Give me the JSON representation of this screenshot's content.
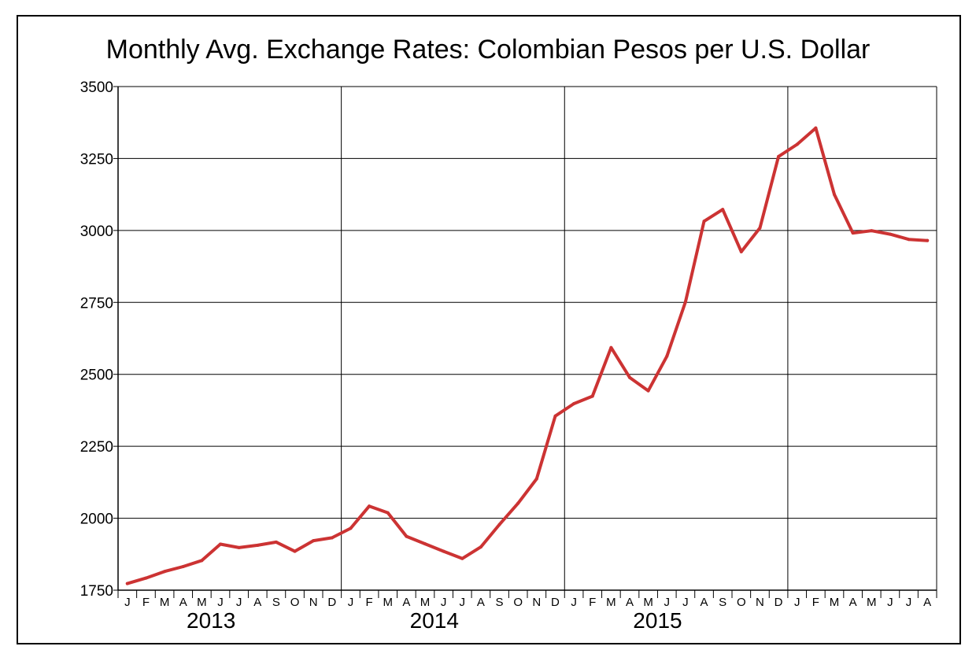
{
  "chart_data": {
    "type": "line",
    "title": "Monthly Avg. Exchange Rates: Colombian Pesos per U.S. Dollar",
    "xlabel": "",
    "ylabel": "",
    "ylim": [
      1750,
      3500
    ],
    "yticks": [
      1750,
      2000,
      2250,
      2500,
      2750,
      3000,
      3250,
      3500
    ],
    "ytick_labels": [
      "1750",
      "2000",
      "2250",
      "2500",
      "2750",
      "3000",
      "3250",
      "3500"
    ],
    "grid": true,
    "legend": "none",
    "line_color": "#cc3333",
    "month_labels": [
      "J",
      "F",
      "M",
      "A",
      "M",
      "J",
      "J",
      "A",
      "S",
      "O",
      "N",
      "D",
      "J",
      "F",
      "M",
      "A",
      "M",
      "J",
      "J",
      "A",
      "S",
      "O",
      "N",
      "D",
      "J",
      "F",
      "M",
      "A",
      "M",
      "J",
      "J",
      "A",
      "S",
      "O",
      "N",
      "D",
      "J",
      "F",
      "M",
      "A",
      "M",
      "J",
      "J",
      "A"
    ],
    "year_labels": [
      "2013",
      "2014",
      "2015"
    ],
    "series": [
      {
        "values": [
          1773,
          1792,
          1815,
          1832,
          1853,
          1910,
          1898,
          1906,
          1917,
          1885,
          1922,
          1932,
          1965,
          2042,
          2019,
          1937,
          1911,
          1885,
          1860,
          1900,
          1978,
          2052,
          2137,
          2355,
          2398,
          2424,
          2593,
          2489,
          2443,
          2563,
          2752,
          3032,
          3073,
          2926,
          3009,
          3257,
          3299,
          3356,
          3125,
          2991,
          2999,
          2987,
          2969,
          2965
        ]
      }
    ]
  }
}
